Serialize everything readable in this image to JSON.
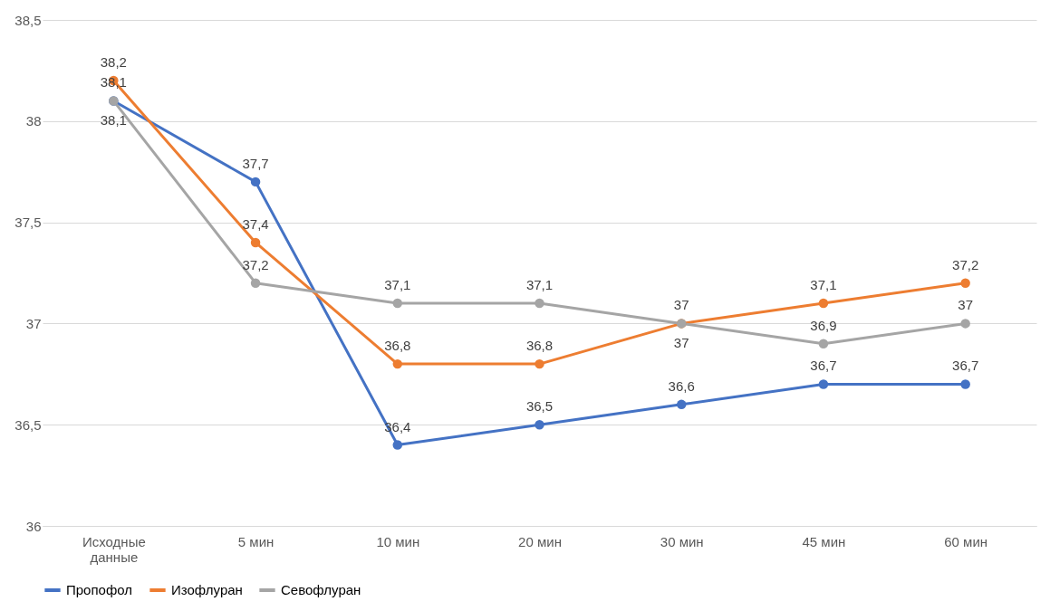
{
  "chart_data": {
    "type": "line",
    "categories": [
      "Исходные данные",
      "5 мин",
      "10 мин",
      "20 мин",
      "30 мин",
      "45 мин",
      "60 мин"
    ],
    "series": [
      {
        "name": "Пропофол",
        "color": "#4472c4",
        "values": [
          38.1,
          37.7,
          36.4,
          36.5,
          36.6,
          36.7,
          36.7
        ],
        "value_labels": [
          "38,1",
          "37,7",
          "36,4",
          "36,5",
          "36,6",
          "36,7",
          "36,7"
        ]
      },
      {
        "name": "Изофлуран",
        "color": "#ed7d31",
        "values": [
          38.2,
          37.4,
          36.8,
          36.8,
          37.0,
          37.1,
          37.2
        ],
        "value_labels": [
          "38,2",
          "37,4",
          "36,8",
          "36,8",
          "37",
          "37,1",
          "37,2"
        ]
      },
      {
        "name": "Севофлуран",
        "color": "#a5a5a5",
        "values": [
          38.1,
          37.2,
          37.1,
          37.1,
          37.0,
          36.9,
          37.0
        ],
        "value_labels": [
          "38,1",
          "37,2",
          "37,1",
          "37,1",
          "37",
          "36,9",
          "37"
        ]
      }
    ],
    "ylim": [
      36,
      38.5
    ],
    "yticks": [
      36,
      {
        "value": 36.5,
        "label": "36,5"
      },
      37,
      {
        "value": 37.5,
        "label": "37,5"
      },
      38,
      {
        "value": 38.5,
        "label": "38,5"
      }
    ],
    "grid": "y",
    "legend": "bottom",
    "marker": "circle",
    "line_style": "solid"
  }
}
